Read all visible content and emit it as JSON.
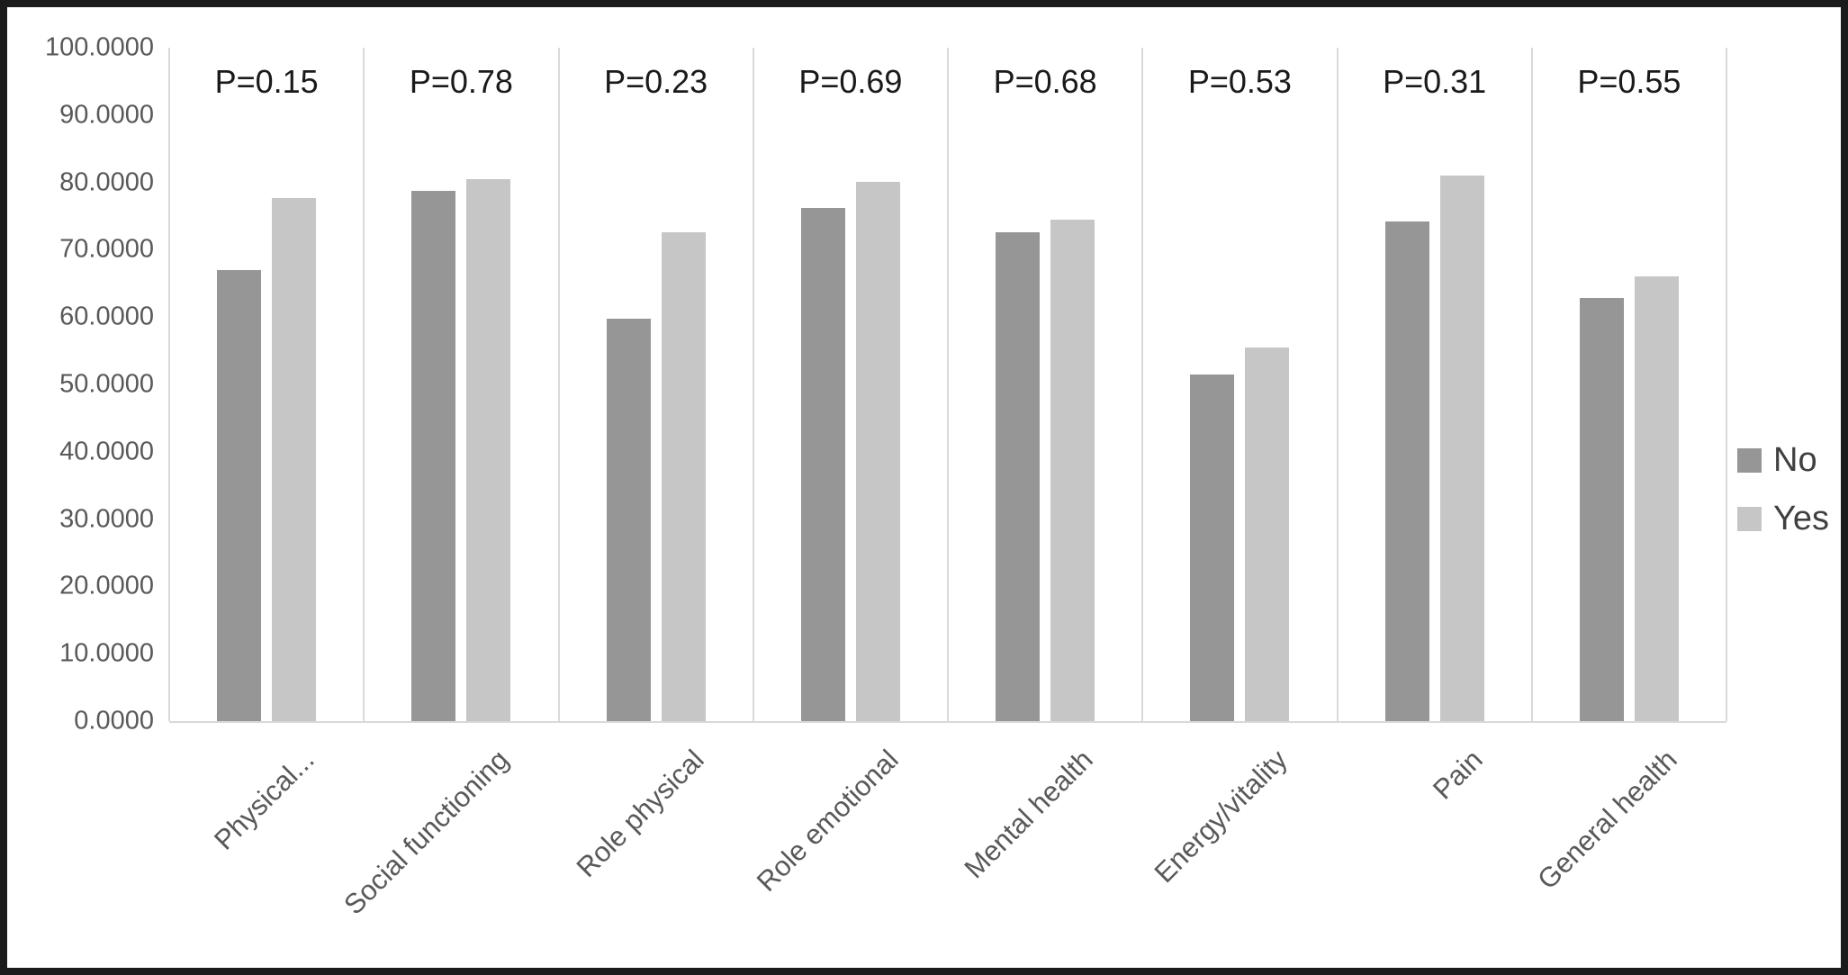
{
  "chart_data": {
    "type": "bar",
    "title": "",
    "xlabel": "",
    "ylabel": "",
    "categories": [
      "Physical...",
      "Social functioning",
      "Role physical",
      "Role emotional",
      "Mental health",
      "Energy/vitality",
      "Pain",
      "General health"
    ],
    "series": [
      {
        "name": "No",
        "color": "#969696",
        "values": [
          67.0,
          78.7,
          59.8,
          76.2,
          72.6,
          51.5,
          74.2,
          62.9
        ]
      },
      {
        "name": "Yes",
        "color": "#c6c6c6",
        "values": [
          77.7,
          80.5,
          72.6,
          80.1,
          74.4,
          55.5,
          81.0,
          66.0
        ]
      }
    ],
    "p_value_annotations": [
      "P=0.15",
      "P=0.78",
      "P=0.23",
      "P=0.69",
      "P=0.68",
      "P=0.53",
      "P=0.31",
      "P=0.55"
    ],
    "y_axis": {
      "min": 0,
      "max": 100,
      "step": 10,
      "tick_labels": [
        "0.0000",
        "10.0000",
        "20.0000",
        "30.0000",
        "40.0000",
        "50.0000",
        "60.0000",
        "70.0000",
        "80.0000",
        "90.0000",
        "100.0000"
      ]
    },
    "legend": {
      "position": "right",
      "entries": [
        "No",
        "Yes"
      ]
    },
    "grid": {
      "horizontal": false,
      "vertical_category_separators": true
    },
    "colors": {
      "gridline": "#d9d9d9",
      "axis_line": "#d9d9d9",
      "tick_text": "#595959",
      "category_text": "#595959",
      "annotation_text": "#1a1a1a",
      "legend_text": "#404040",
      "frame_border": "#1b1b1b",
      "background": "#ffffff"
    }
  }
}
